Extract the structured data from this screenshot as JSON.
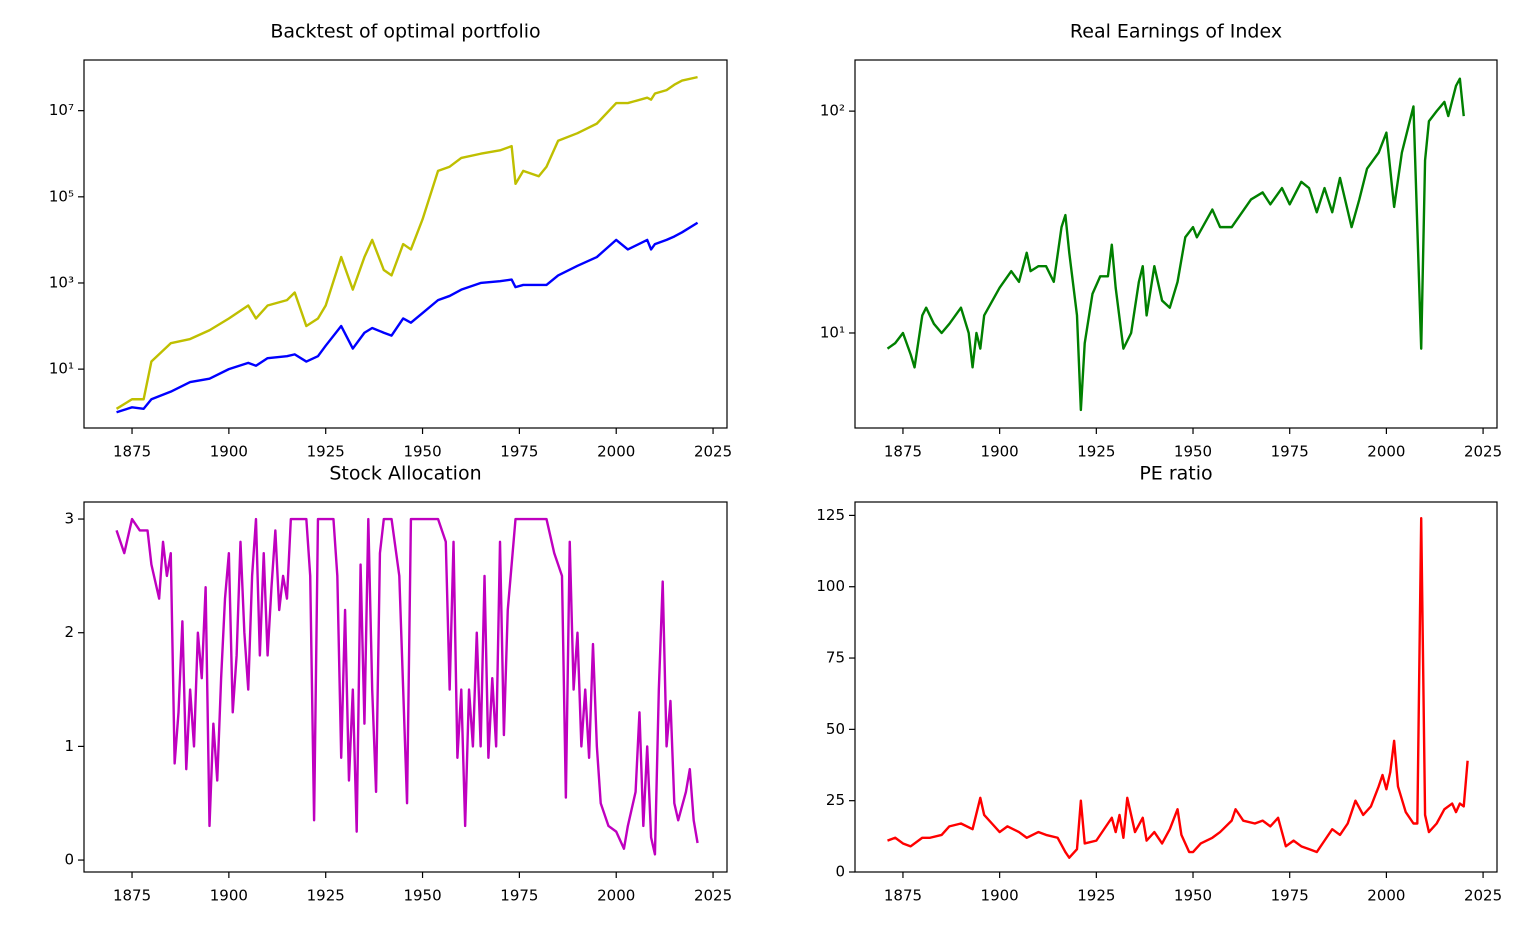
{
  "chart_data": [
    {
      "type": "line",
      "title": "Backtest of optimal portfolio",
      "yscale": "log",
      "x": [
        1871,
        1875,
        1878,
        1880,
        1885,
        1890,
        1895,
        1900,
        1905,
        1907,
        1910,
        1915,
        1917,
        1920,
        1923,
        1925,
        1929,
        1932,
        1935,
        1937,
        1940,
        1942,
        1945,
        1947,
        1950,
        1954,
        1957,
        1960,
        1965,
        1970,
        1973,
        1974,
        1976,
        1980,
        1982,
        1985,
        1990,
        1995,
        2000,
        2003,
        2008,
        2009,
        2010,
        2013,
        2015,
        2017,
        2021
      ],
      "series": [
        {
          "color": "#bfbf00",
          "values": [
            1.2,
            2,
            2,
            15,
            40,
            50,
            80,
            150,
            300,
            150,
            300,
            400,
            600,
            100,
            150,
            300,
            4000,
            700,
            4000,
            10000,
            2000,
            1500,
            8000,
            6000,
            30000,
            400000,
            500000,
            800000,
            1000000,
            1200000,
            1500000,
            200000,
            400000,
            300000,
            500000,
            2000000,
            3000000,
            5000000,
            15000000,
            15000000,
            20000000,
            18000000,
            25000000,
            30000000,
            40000000,
            50000000,
            60000000
          ]
        },
        {
          "color": "#0000ff",
          "values": [
            1,
            1.3,
            1.2,
            2,
            3,
            5,
            6,
            10,
            14,
            12,
            18,
            20,
            22,
            15,
            20,
            35,
            100,
            30,
            70,
            90,
            70,
            60,
            150,
            120,
            200,
            400,
            500,
            700,
            1000,
            1100,
            1200,
            800,
            900,
            900,
            900,
            1500,
            2500,
            4000,
            10000,
            6000,
            10000,
            6000,
            8000,
            10000,
            12000,
            15000,
            25000
          ]
        }
      ],
      "xlim": [
        1862.6,
        2028.6
      ],
      "ylim": [
        0.43,
        150000000
      ],
      "xticks": [
        1875,
        1900,
        1925,
        1950,
        1975,
        2000,
        2025
      ],
      "yticks": [
        {
          "value": 10,
          "label": "10¹"
        },
        {
          "value": 1000,
          "label": "10³"
        },
        {
          "value": 100000,
          "label": "10⁵"
        },
        {
          "value": 10000000,
          "label": "10⁷"
        }
      ]
    },
    {
      "type": "line",
      "title": "Real Earnings of Index",
      "yscale": "log",
      "x": [
        1871,
        1873,
        1875,
        1877,
        1878,
        1880,
        1881,
        1883,
        1885,
        1887,
        1890,
        1892,
        1893,
        1894,
        1895,
        1896,
        1900,
        1903,
        1905,
        1907,
        1908,
        1910,
        1912,
        1914,
        1916,
        1917,
        1918,
        1920,
        1921,
        1922,
        1924,
        1926,
        1928,
        1929,
        1930,
        1932,
        1934,
        1936,
        1937,
        1938,
        1940,
        1942,
        1944,
        1946,
        1948,
        1950,
        1951,
        1955,
        1957,
        1960,
        1965,
        1968,
        1970,
        1973,
        1975,
        1978,
        1980,
        1982,
        1984,
        1986,
        1988,
        1991,
        1993,
        1995,
        1998,
        2000,
        2002,
        2004,
        2007,
        2009,
        2010,
        2011,
        2013,
        2015,
        2016,
        2018,
        2019,
        2020
      ],
      "series": [
        {
          "color": "#008000",
          "values": [
            8.5,
            9,
            10,
            8,
            7,
            12,
            13,
            11,
            10,
            11,
            13,
            10,
            7,
            10,
            8.5,
            12,
            16,
            19,
            17,
            23,
            19,
            20,
            20,
            17,
            30,
            34,
            23,
            12,
            4.5,
            9,
            15,
            18,
            18,
            25,
            16,
            8.5,
            10,
            17,
            20,
            12,
            20,
            14,
            13,
            17,
            27,
            30,
            27,
            36,
            30,
            30,
            40,
            43,
            38,
            45,
            38,
            48,
            45,
            35,
            45,
            35,
            50,
            30,
            40,
            55,
            65,
            80,
            37,
            65,
            105,
            8.5,
            60,
            90,
            100,
            110,
            95,
            130,
            140,
            95
          ]
        }
      ],
      "xlim": [
        1862.6,
        2028.6
      ],
      "ylim": [
        3.73,
        170
      ],
      "xticks": [
        1875,
        1900,
        1925,
        1950,
        1975,
        2000,
        2025
      ],
      "yticks": [
        {
          "value": 10,
          "label": "10¹"
        },
        {
          "value": 100,
          "label": "10²"
        }
      ]
    },
    {
      "type": "line",
      "title": "Stock Allocation",
      "x": [
        1871,
        1873,
        1875,
        1877,
        1879,
        1880,
        1882,
        1883,
        1884,
        1885,
        1886,
        1887,
        1888,
        1889,
        1890,
        1891,
        1892,
        1893,
        1894,
        1895,
        1896,
        1897,
        1898,
        1899,
        1900,
        1901,
        1902,
        1903,
        1904,
        1905,
        1906,
        1907,
        1908,
        1909,
        1910,
        1911,
        1912,
        1913,
        1914,
        1915,
        1916,
        1918,
        1920,
        1921,
        1922,
        1923,
        1925,
        1927,
        1928,
        1929,
        1930,
        1931,
        1932,
        1933,
        1934,
        1935,
        1936,
        1937,
        1938,
        1939,
        1940,
        1942,
        1944,
        1945,
        1946,
        1947,
        1950,
        1954,
        1956,
        1957,
        1958,
        1959,
        1960,
        1961,
        1962,
        1963,
        1964,
        1965,
        1966,
        1967,
        1968,
        1969,
        1970,
        1971,
        1972,
        1974,
        1978,
        1980,
        1982,
        1984,
        1986,
        1987,
        1988,
        1989,
        1990,
        1991,
        1992,
        1993,
        1994,
        1995,
        1996,
        1998,
        2000,
        2002,
        2003,
        2005,
        2006,
        2007,
        2008,
        2009,
        2010,
        2011,
        2012,
        2013,
        2014,
        2015,
        2016,
        2018,
        2019,
        2020,
        2021
      ],
      "series": [
        {
          "color": "#bf00bf",
          "values": [
            2.9,
            2.7,
            3.0,
            2.9,
            2.9,
            2.6,
            2.3,
            2.8,
            2.5,
            2.7,
            0.85,
            1.3,
            2.1,
            0.8,
            1.5,
            1.0,
            2.0,
            1.6,
            2.4,
            0.3,
            1.2,
            0.7,
            1.6,
            2.3,
            2.7,
            1.3,
            1.8,
            2.8,
            2.0,
            1.5,
            2.5,
            3.0,
            1.8,
            2.7,
            1.8,
            2.4,
            2.9,
            2.2,
            2.5,
            2.3,
            3.0,
            3.0,
            3.0,
            2.5,
            0.35,
            3.0,
            3.0,
            3.0,
            2.5,
            0.9,
            2.2,
            0.7,
            1.5,
            0.25,
            2.6,
            1.2,
            3.0,
            1.5,
            0.6,
            2.7,
            3.0,
            3.0,
            2.5,
            1.5,
            0.5,
            3.0,
            3.0,
            3.0,
            2.8,
            1.5,
            2.8,
            0.9,
            1.5,
            0.3,
            1.5,
            1.0,
            2.0,
            1.0,
            2.5,
            0.9,
            1.6,
            1.0,
            2.8,
            1.1,
            2.2,
            3.0,
            3.0,
            3.0,
            3.0,
            2.7,
            2.5,
            0.55,
            2.8,
            1.5,
            2.0,
            1.0,
            1.5,
            0.9,
            1.9,
            1.0,
            0.5,
            0.3,
            0.25,
            0.1,
            0.3,
            0.6,
            1.3,
            0.3,
            1.0,
            0.2,
            0.05,
            1.5,
            2.45,
            1.0,
            1.4,
            0.5,
            0.35,
            0.6,
            0.8,
            0.35,
            0.15
          ]
        }
      ],
      "xlim": [
        1862.6,
        2028.6
      ],
      "ylim": [
        -0.105,
        3.15
      ],
      "xticks": [
        1875,
        1900,
        1925,
        1950,
        1975,
        2000,
        2025
      ],
      "yticks": [
        0,
        1,
        2,
        3
      ]
    },
    {
      "type": "line",
      "title": "PE ratio",
      "x": [
        1871,
        1873,
        1875,
        1877,
        1880,
        1882,
        1885,
        1887,
        1890,
        1893,
        1895,
        1896,
        1898,
        1900,
        1902,
        1905,
        1907,
        1910,
        1912,
        1915,
        1917,
        1918,
        1920,
        1921,
        1922,
        1925,
        1928,
        1929,
        1930,
        1931,
        1932,
        1933,
        1934,
        1935,
        1937,
        1938,
        1940,
        1942,
        1944,
        1946,
        1947,
        1949,
        1950,
        1952,
        1955,
        1957,
        1960,
        1961,
        1963,
        1966,
        1968,
        1970,
        1972,
        1974,
        1976,
        1978,
        1980,
        1982,
        1984,
        1986,
        1988,
        1990,
        1992,
        1994,
        1996,
        1998,
        1999,
        2000,
        2001,
        2002,
        2003,
        2005,
        2007,
        2008,
        2009,
        2010,
        2011,
        2013,
        2015,
        2017,
        2018,
        2019,
        2020,
        2021
      ],
      "series": [
        {
          "color": "#ff0000",
          "values": [
            11,
            12,
            10,
            9,
            12,
            12,
            13,
            16,
            17,
            15,
            26,
            20,
            17,
            14,
            16,
            14,
            12,
            14,
            13,
            12,
            7,
            5,
            8,
            25,
            10,
            11,
            17,
            19,
            14,
            20,
            12,
            26,
            20,
            14,
            19,
            11,
            14,
            10,
            15,
            22,
            13,
            7,
            7,
            10,
            12,
            14,
            18,
            22,
            18,
            17,
            18,
            16,
            19,
            9,
            11,
            9,
            8,
            7,
            11,
            15,
            13,
            17,
            25,
            20,
            23,
            30,
            34,
            29,
            35,
            46,
            30,
            21,
            17,
            17,
            124,
            20,
            14,
            17,
            22,
            24,
            21,
            24,
            23,
            39
          ]
        }
      ],
      "xlim": [
        1862.6,
        2028.6
      ],
      "ylim": [
        0,
        129.7
      ],
      "xticks": [
        1875,
        1900,
        1925,
        1950,
        1975,
        2000,
        2025
      ],
      "yticks": [
        0,
        25,
        50,
        75,
        100,
        125
      ]
    }
  ]
}
